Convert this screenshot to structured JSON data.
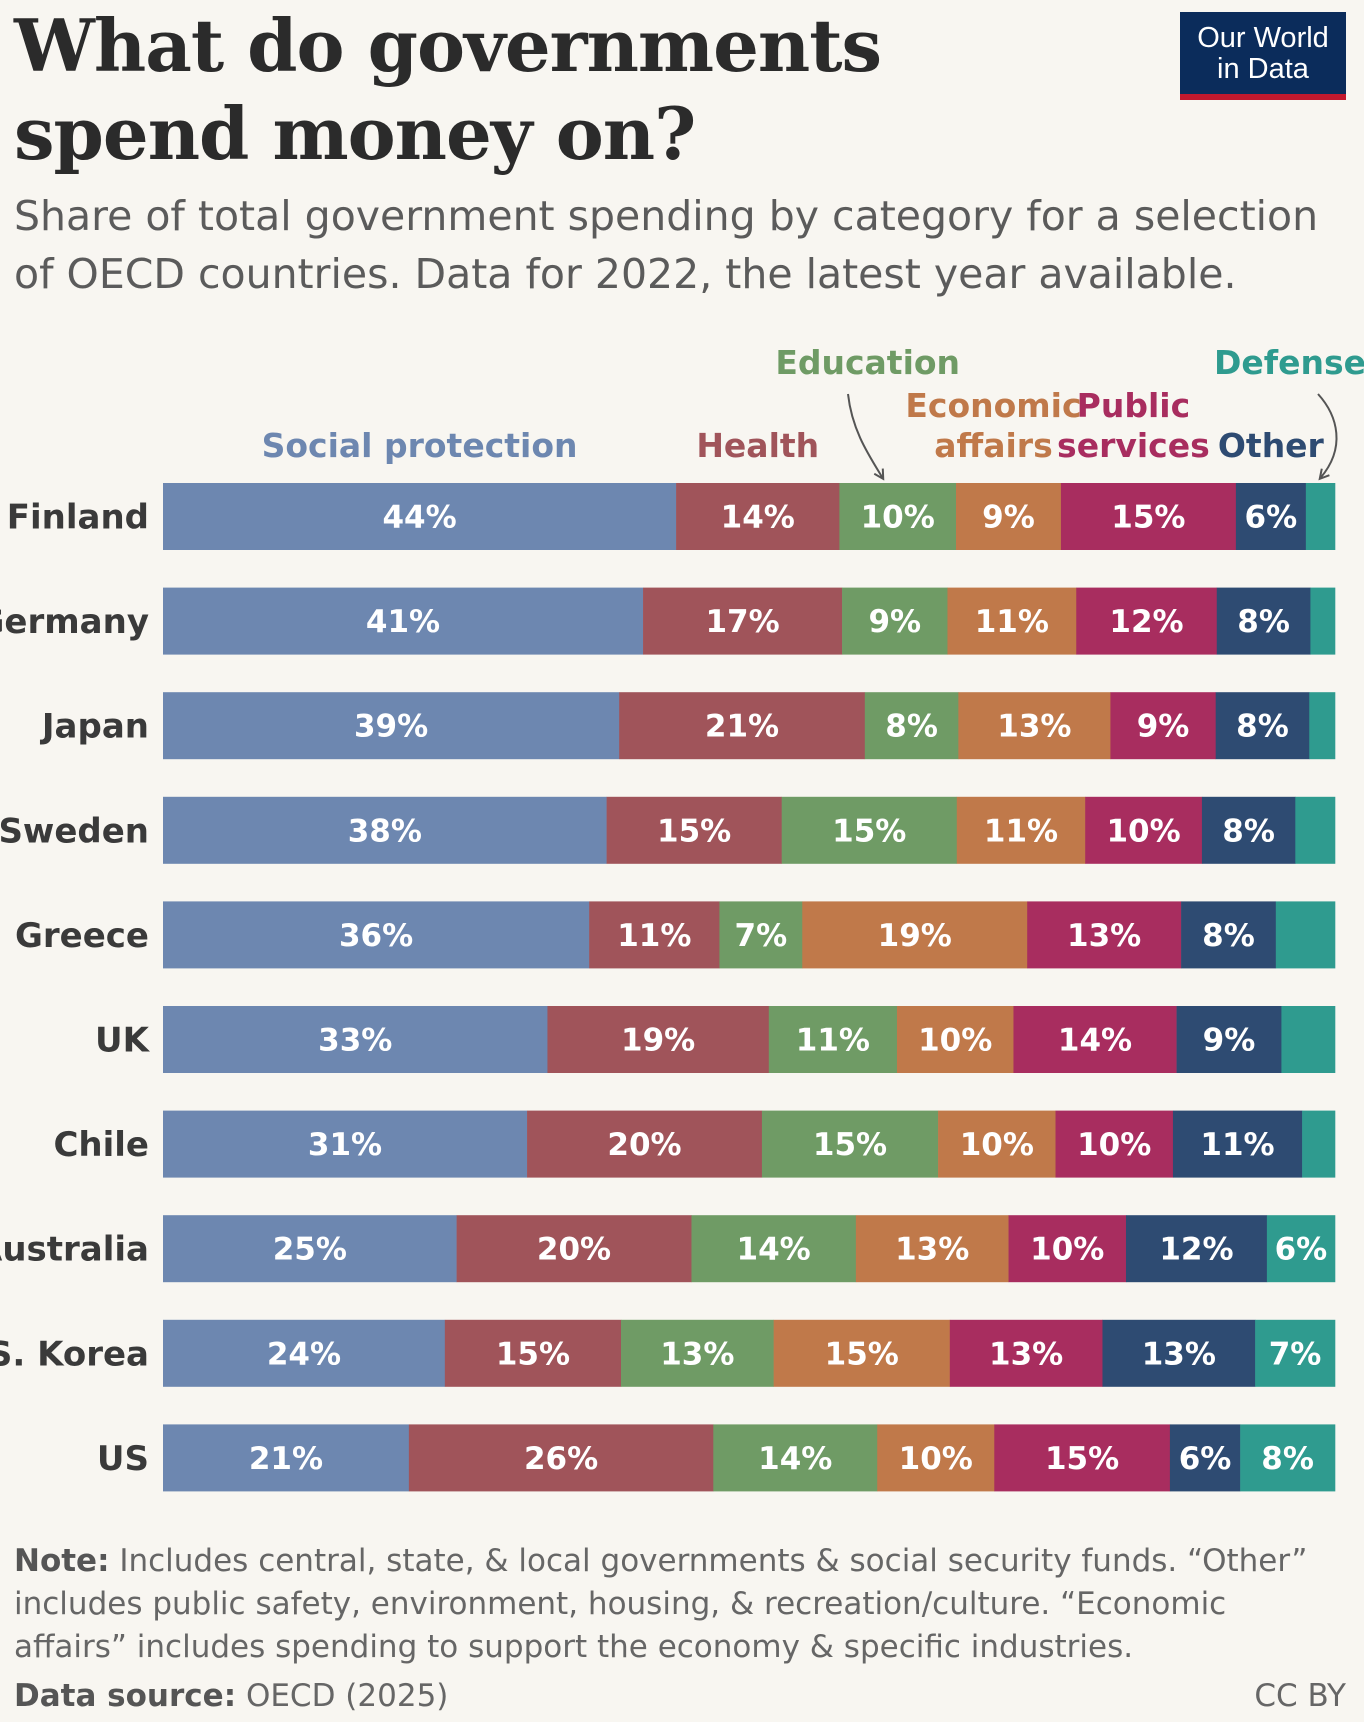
{
  "header": {
    "title": "What do governments spend money on?",
    "subtitle": "Share of total government spending by category for a selection of OECD countries. Data for 2022, the latest year available."
  },
  "logo": {
    "line1": "Our World",
    "line2": "in Data"
  },
  "footer": {
    "note_label": "Note:",
    "note_text": " Includes central, state, & local governments & social security funds. “Other” includes public safety, environment, housing, & recreation/culture. “Economic affairs” includes spending to support the economy & specific industries.",
    "source_label": "Data source:",
    "source_text": " OECD (2025)",
    "license": "CC BY"
  },
  "chart_data": {
    "type": "bar",
    "orientation": "horizontal",
    "stacked": true,
    "normalized_to_100": true,
    "title": "What do governments spend money on?",
    "categories": [
      "Finland",
      "Germany",
      "Japan",
      "Sweden",
      "Greece",
      "UK",
      "Chile",
      "Australia",
      "S. Korea",
      "US"
    ],
    "series": [
      {
        "name": "Social protection",
        "legend_lines": [
          "Social protection"
        ],
        "color": "#6d87b0",
        "values": [
          44,
          41,
          39,
          38,
          36,
          33,
          31,
          25,
          24,
          21
        ]
      },
      {
        "name": "Health",
        "legend_lines": [
          "Health"
        ],
        "color": "#a0545a",
        "values": [
          14,
          17,
          21,
          15,
          11,
          19,
          20,
          20,
          15,
          26
        ]
      },
      {
        "name": "Education",
        "legend_lines": [
          "Education"
        ],
        "color": "#6f9b65",
        "values": [
          10,
          9,
          8,
          15,
          7,
          11,
          15,
          14,
          13,
          14
        ]
      },
      {
        "name": "Economic affairs",
        "legend_lines": [
          "Economic",
          "affairs"
        ],
        "color": "#c0794a",
        "values": [
          9,
          11,
          13,
          11,
          19,
          10,
          10,
          13,
          15,
          10
        ]
      },
      {
        "name": "Public services",
        "legend_lines": [
          "Public",
          "services"
        ],
        "color": "#a82d5f",
        "values": [
          15,
          12,
          9,
          10,
          13,
          14,
          10,
          10,
          13,
          15
        ]
      },
      {
        "name": "Other",
        "legend_lines": [
          "Other"
        ],
        "color": "#2e4b72",
        "values": [
          6,
          8,
          8,
          8,
          8,
          9,
          11,
          12,
          13,
          6
        ]
      },
      {
        "name": "Defense",
        "legend_lines": [
          "Defense"
        ],
        "color": "#2f9b8f",
        "values": [
          2.5,
          2.1,
          2.2,
          3.4,
          5,
          4.6,
          2.8,
          5.8,
          6.8,
          8.1
        ]
      }
    ],
    "data_labels": [
      [
        "44%",
        "14%",
        "10%",
        "9%",
        "15%",
        "6%",
        ""
      ],
      [
        "41%",
        "17%",
        "9%",
        "11%",
        "12%",
        "8%",
        ""
      ],
      [
        "39%",
        "21%",
        "8%",
        "13%",
        "9%",
        "8%",
        ""
      ],
      [
        "38%",
        "15%",
        "15%",
        "11%",
        "10%",
        "8%",
        ""
      ],
      [
        "36%",
        "11%",
        "7%",
        "19%",
        "13%",
        "8%",
        ""
      ],
      [
        "33%",
        "19%",
        "11%",
        "10%",
        "14%",
        "9%",
        ""
      ],
      [
        "31%",
        "20%",
        "15%",
        "10%",
        "10%",
        "11%",
        ""
      ],
      [
        "25%",
        "20%",
        "14%",
        "13%",
        "10%",
        "12%",
        "6%"
      ],
      [
        "24%",
        "15%",
        "13%",
        "15%",
        "13%",
        "13%",
        "7%"
      ],
      [
        "21%",
        "26%",
        "14%",
        "10%",
        "15%",
        "6%",
        "8%"
      ]
    ],
    "xlim": [
      0,
      100
    ],
    "xlabel": "",
    "ylabel": ""
  }
}
